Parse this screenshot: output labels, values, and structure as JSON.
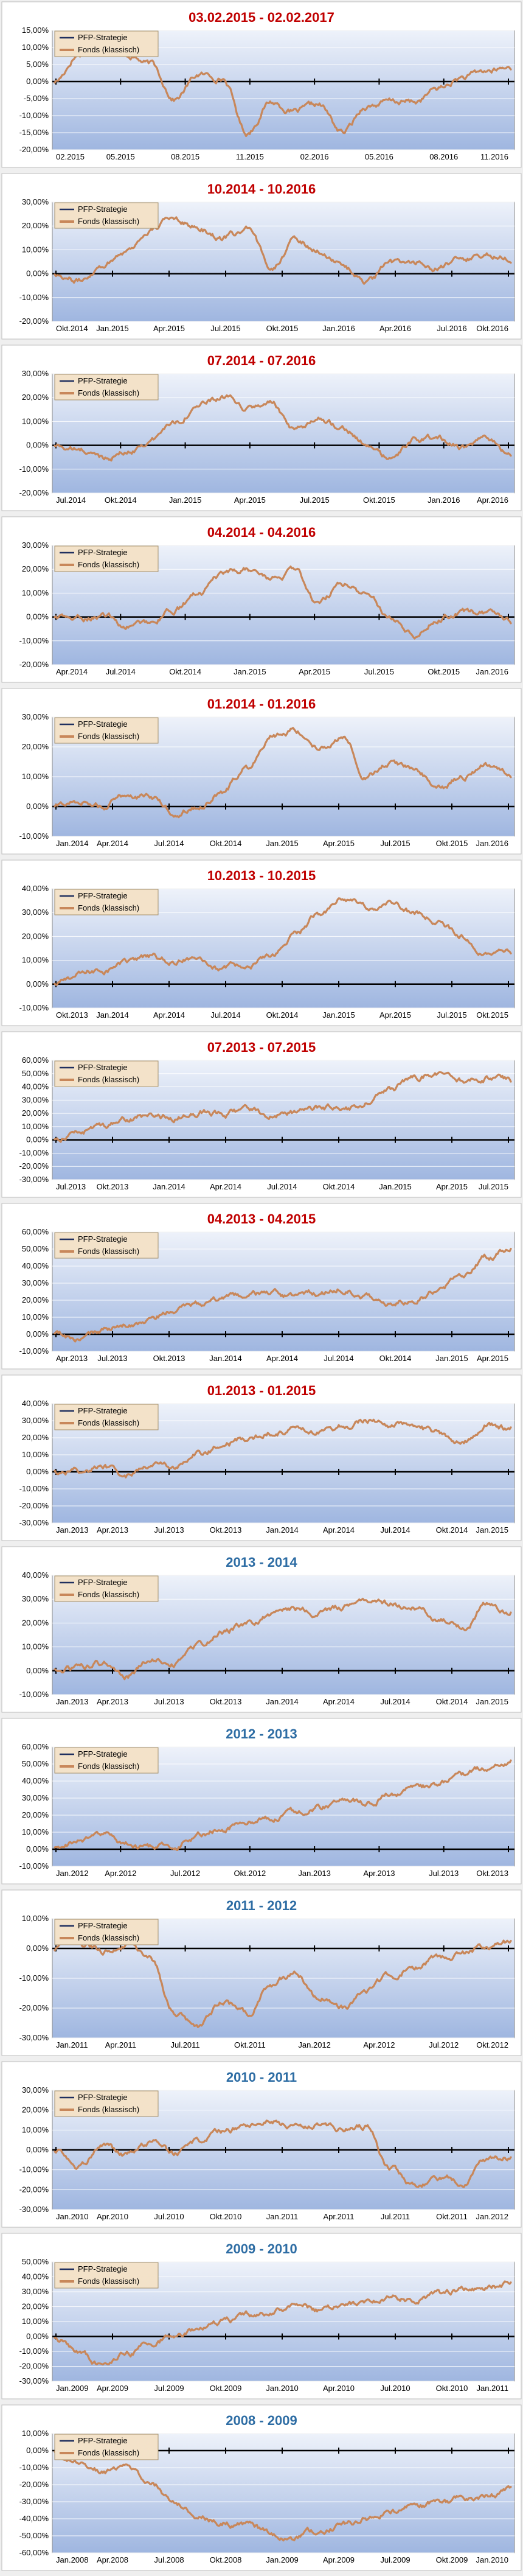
{
  "colors": {
    "fund": "#c8875a",
    "strategy": "#1f2f5f",
    "red_title": "#c00000",
    "blue_title": "#2e6da4",
    "plot_top": "#eef2fa",
    "plot_bottom": "#9fb6e0",
    "frame": "#8a8a8a",
    "grid": "#ffffff"
  },
  "chart_data": [
    {
      "type": "line",
      "title": "03.02.2015 - 02.02.2017",
      "title_color": "red",
      "x_ticks": [
        "02.2015",
        "05.2015",
        "08.2015",
        "11.2015",
        "02.2016",
        "05.2016",
        "08.2016",
        "11.2016"
      ],
      "y_ticks": [
        "15,00%",
        "10,00%",
        "5,00%",
        "0,00%",
        "-5,00%",
        "-10,00%",
        "-15,00%",
        "-20,00%"
      ],
      "ylim": [
        -20,
        15
      ],
      "legend_placement": "top-left",
      "series": [
        {
          "name": "PFP-Strategie",
          "values": []
        },
        {
          "name": "Fonds (klassisch)",
          "values": [
            0,
            8,
            12,
            8,
            5,
            -5,
            2,
            1,
            -15,
            -6,
            -9,
            -7,
            -15,
            -7,
            -6,
            -6,
            -2,
            1,
            3,
            4
          ]
        }
      ]
    },
    {
      "type": "line",
      "title": "10.2014 - 10.2016",
      "title_color": "red",
      "x_ticks": [
        "Okt.2014",
        "Jan.2015",
        "Apr.2015",
        "Jul.2015",
        "Okt.2015",
        "Jan.2016",
        "Apr.2016",
        "Jul.2016",
        "Okt.2016"
      ],
      "y_ticks": [
        "30,00%",
        "20,00%",
        "10,00%",
        "0,00%",
        "-10,00%",
        "-20,00%"
      ],
      "ylim": [
        -20,
        30
      ],
      "legend_placement": "top-left",
      "series": [
        {
          "name": "PFP-Strategie",
          "values": []
        },
        {
          "name": "Fonds (klassisch)",
          "values": [
            0,
            -3,
            4,
            10,
            18,
            24,
            19,
            15,
            18,
            3,
            14,
            10,
            3,
            -4,
            4,
            5,
            2,
            6,
            8,
            7
          ]
        }
      ]
    },
    {
      "type": "line",
      "title": "07.2014 - 07.2016",
      "title_color": "red",
      "x_ticks": [
        "Jul.2014",
        "Okt.2014",
        "Jan.2015",
        "Apr.2015",
        "Jul.2015",
        "Okt.2015",
        "Jan.2016",
        "Apr.2016"
      ],
      "y_ticks": [
        "30,00%",
        "20,00%",
        "10,00%",
        "0,00%",
        "-10,00%",
        "-20,00%"
      ],
      "ylim": [
        -20,
        30
      ],
      "legend_placement": "top-left",
      "series": [
        {
          "name": "PFP-Strategie",
          "values": []
        },
        {
          "name": "Fonds (klassisch)",
          "values": [
            0,
            -2,
            -5,
            -3,
            2,
            10,
            17,
            20,
            15,
            18,
            5,
            12,
            8,
            0,
            -6,
            2,
            3,
            -1,
            2,
            -3
          ]
        }
      ]
    },
    {
      "type": "line",
      "title": "04.2014 - 04.2016",
      "title_color": "red",
      "x_ticks": [
        "Apr.2014",
        "Jul.2014",
        "Okt.2014",
        "Jan.2015",
        "Apr.2015",
        "Jul.2015",
        "Okt.2015",
        "Jan.2016"
      ],
      "y_ticks": [
        "30,00%",
        "20,00%",
        "10,00%",
        "0,00%",
        "-10,00%",
        "-20,00%"
      ],
      "ylim": [
        -20,
        30
      ],
      "legend_placement": "top-left",
      "series": [
        {
          "name": "PFP-Strategie",
          "values": []
        },
        {
          "name": "Fonds (klassisch)",
          "values": [
            0,
            -1,
            1,
            -4,
            -2,
            3,
            10,
            17,
            20,
            16,
            19,
            6,
            14,
            9,
            0,
            -7,
            0,
            2,
            1,
            -2
          ]
        }
      ]
    },
    {
      "type": "line",
      "title": "01.2014 - 01.2016",
      "title_color": "red",
      "x_ticks": [
        "Jan.2014",
        "Apr.2014",
        "Jul.2014",
        "Okt.2014",
        "Jan.2015",
        "Apr.2015",
        "Jul.2015",
        "Okt.2015",
        "Jan.2016"
      ],
      "y_ticks": [
        "30,00%",
        "20,00%",
        "10,00%",
        "0,00%",
        "-10,00%"
      ],
      "ylim": [
        -10,
        30
      ],
      "legend_placement": "top-left",
      "series": [
        {
          "name": "PFP-Strategie",
          "values": []
        },
        {
          "name": "Fonds (klassisch)",
          "values": [
            0,
            2,
            0,
            4,
            3,
            -2,
            0,
            5,
            13,
            24,
            26,
            20,
            23,
            10,
            15,
            12,
            6,
            10,
            14,
            11
          ]
        }
      ]
    },
    {
      "type": "line",
      "title": "10.2013 - 10.2015",
      "title_color": "red",
      "x_ticks": [
        "Okt.2013",
        "Jan.2014",
        "Apr.2014",
        "Jul.2014",
        "Okt.2014",
        "Jan.2015",
        "Apr.2015",
        "Jul.2015",
        "Okt.2015"
      ],
      "y_ticks": [
        "40,00%",
        "30,00%",
        "20,00%",
        "10,00%",
        "0,00%",
        "-10,00%"
      ],
      "ylim": [
        -10,
        40
      ],
      "legend_placement": "top-left",
      "series": [
        {
          "name": "PFP-Strategie",
          "values": []
        },
        {
          "name": "Fonds (klassisch)",
          "values": [
            0,
            4,
            6,
            9,
            11,
            9,
            12,
            6,
            8,
            11,
            20,
            30,
            36,
            32,
            34,
            30,
            26,
            20,
            12,
            14
          ]
        }
      ]
    },
    {
      "type": "line",
      "title": "07.2013 - 07.2015",
      "title_color": "red",
      "x_ticks": [
        "Jul.2013",
        "Okt.2013",
        "Jan.2014",
        "Apr.2014",
        "Jul.2014",
        "Okt.2014",
        "Jan.2015",
        "Apr.2015",
        "Jul.2015"
      ],
      "y_ticks": [
        "60,00%",
        "50,00%",
        "40,00%",
        "30,00%",
        "20,00%",
        "10,00%",
        "0,00%",
        "-10,00%",
        "-20,00%",
        "-30,00%"
      ],
      "ylim": [
        -30,
        60
      ],
      "legend_placement": "top-left",
      "series": [
        {
          "name": "PFP-Strategie",
          "values": []
        },
        {
          "name": "Fonds (klassisch)",
          "values": [
            0,
            6,
            11,
            15,
            18,
            17,
            21,
            19,
            23,
            18,
            21,
            25,
            22,
            28,
            38,
            48,
            50,
            45,
            47,
            44
          ]
        }
      ]
    },
    {
      "type": "line",
      "title": "04.2013 - 04.2015",
      "title_color": "red",
      "x_ticks": [
        "Apr.2013",
        "Jul.2013",
        "Okt.2013",
        "Jan.2014",
        "Apr.2014",
        "Jul.2014",
        "Okt.2014",
        "Jan.2015",
        "Apr.2015"
      ],
      "y_ticks": [
        "60,00%",
        "50,00%",
        "40,00%",
        "30,00%",
        "20,00%",
        "10,00%",
        "0,00%",
        "-10,00%"
      ],
      "ylim": [
        -10,
        60
      ],
      "legend_placement": "top-left",
      "series": [
        {
          "name": "PFP-Strategie",
          "values": []
        },
        {
          "name": "Fonds (klassisch)",
          "values": [
            0,
            -3,
            2,
            5,
            9,
            14,
            17,
            20,
            22,
            24,
            21,
            24,
            27,
            23,
            17,
            21,
            26,
            35,
            45,
            50
          ]
        }
      ]
    },
    {
      "type": "line",
      "title": "01.2013 - 01.2015",
      "title_color": "red",
      "x_ticks": [
        "Jan.2013",
        "Apr.2013",
        "Jul.2013",
        "Okt.2013",
        "Jan.2014",
        "Apr.2014",
        "Jul.2014",
        "Okt.2014",
        "Jan.2015"
      ],
      "y_ticks": [
        "40,00%",
        "30,00%",
        "20,00%",
        "10,00%",
        "0,00%",
        "-10,00%",
        "-20,00%",
        "-30,00%"
      ],
      "ylim": [
        -30,
        40
      ],
      "legend_placement": "top-left",
      "series": [
        {
          "name": "PFP-Strategie",
          "values": []
        },
        {
          "name": "Fonds (klassisch)",
          "values": [
            0,
            1,
            3,
            -2,
            5,
            3,
            10,
            16,
            20,
            23,
            26,
            24,
            27,
            30,
            28,
            26,
            22,
            18,
            28,
            25
          ]
        }
      ]
    },
    {
      "type": "line",
      "title": "2013 - 2014",
      "title_color": "blue",
      "x_ticks": [
        "Jan.2013",
        "Apr.2013",
        "Jul.2013",
        "Okt.2013",
        "Jan.2014",
        "Apr.2014",
        "Jul.2014",
        "Okt.2014",
        "Jan.2015"
      ],
      "y_ticks": [
        "40,00%",
        "30,00%",
        "20,00%",
        "10,00%",
        "0,00%",
        "-10,00%"
      ],
      "ylim": [
        -10,
        40
      ],
      "legend_placement": "top-left",
      "series": [
        {
          "name": "PFP-Strategie",
          "values": []
        },
        {
          "name": "Fonds (klassisch)",
          "values": [
            0,
            1,
            3,
            -2,
            5,
            3,
            10,
            16,
            20,
            23,
            26,
            24,
            27,
            30,
            28,
            26,
            22,
            18,
            28,
            25
          ]
        }
      ]
    },
    {
      "type": "line",
      "title": "2012 - 2013",
      "title_color": "blue",
      "x_ticks": [
        "Jan.2012",
        "Apr.2012",
        "Jul.2012",
        "Okt.2012",
        "Jan.2013",
        "Apr.2013",
        "Jul.2013",
        "Okt.2013"
      ],
      "y_ticks": [
        "60,00%",
        "50,00%",
        "40,00%",
        "30,00%",
        "20,00%",
        "10,00%",
        "0,00%",
        "-10,00%"
      ],
      "ylim": [
        -10,
        60
      ],
      "legend_placement": "top-left",
      "series": [
        {
          "name": "PFP-Strategie",
          "values": []
        },
        {
          "name": "Fonds (klassisch)",
          "values": [
            0,
            5,
            8,
            3,
            0,
            2,
            8,
            12,
            16,
            18,
            22,
            25,
            28,
            27,
            32,
            36,
            38,
            44,
            48,
            52
          ]
        }
      ]
    },
    {
      "type": "line",
      "title": "2011 - 2012",
      "title_color": "blue",
      "x_ticks": [
        "Jan.2011",
        "Apr.2011",
        "Jul.2011",
        "Okt.2011",
        "Jan.2012",
        "Apr.2012",
        "Jul.2012",
        "Okt.2012"
      ],
      "y_ticks": [
        "10,00%",
        "0,00%",
        "-10,00%",
        "-20,00%",
        "-30,00%"
      ],
      "ylim": [
        -30,
        10
      ],
      "legend_placement": "top-left",
      "series": [
        {
          "name": "PFP-Strategie",
          "values": []
        },
        {
          "name": "Fonds (klassisch)",
          "values": [
            0,
            2,
            -1,
            1,
            -4,
            -22,
            -26,
            -18,
            -22,
            -12,
            -8,
            -16,
            -20,
            -14,
            -9,
            -6,
            -3,
            -2,
            1,
            2
          ]
        }
      ]
    },
    {
      "type": "line",
      "title": "2010 - 2011",
      "title_color": "blue",
      "x_ticks": [
        "Jan.2010",
        "Apr.2010",
        "Jul.2010",
        "Okt.2010",
        "Jan.2011",
        "Apr.2011",
        "Jul.2011",
        "Okt.2011",
        "Jan.2012"
      ],
      "y_ticks": [
        "30,00%",
        "20,00%",
        "10,00%",
        "0,00%",
        "-10,00%",
        "-20,00%",
        "-30,00%"
      ],
      "ylim": [
        -30,
        30
      ],
      "legend_placement": "top-left",
      "series": [
        {
          "name": "PFP-Strategie",
          "values": []
        },
        {
          "name": "Fonds (klassisch)",
          "values": [
            0,
            -8,
            2,
            -3,
            4,
            -2,
            5,
            9,
            13,
            15,
            12,
            14,
            10,
            12,
            -10,
            -18,
            -14,
            -16,
            -6,
            -4
          ]
        }
      ]
    },
    {
      "type": "line",
      "title": "2009 - 2010",
      "title_color": "blue",
      "x_ticks": [
        "Jan.2009",
        "Apr.2009",
        "Jul.2009",
        "Okt.2009",
        "Jan.2010",
        "Apr.2010",
        "Jul.2010",
        "Okt.2010",
        "Jan.2011"
      ],
      "y_ticks": [
        "50,00%",
        "40,00%",
        "30,00%",
        "20,00%",
        "10,00%",
        "0,00%",
        "-10,00%",
        "-20,00%",
        "-30,00%"
      ],
      "ylim": [
        -30,
        50
      ],
      "legend_placement": "top-left",
      "series": [
        {
          "name": "PFP-Strategie",
          "values": []
        },
        {
          "name": "Fonds (klassisch)",
          "values": [
            0,
            -10,
            -20,
            -12,
            -5,
            1,
            6,
            10,
            14,
            17,
            21,
            18,
            20,
            24,
            27,
            24,
            29,
            31,
            34,
            35
          ]
        }
      ]
    },
    {
      "type": "line",
      "title": "2008 - 2009",
      "title_color": "blue",
      "x_ticks": [
        "Jan.2008",
        "Apr.2008",
        "Jul.2008",
        "Okt.2008",
        "Jan.2009",
        "Apr.2009",
        "Jul.2009",
        "Okt.2009",
        "Jan.2010"
      ],
      "y_ticks": [
        "10,00%",
        "0,00%",
        "-10,00%",
        "-20,00%",
        "-30,00%",
        "-40,00%",
        "-50,00%",
        "-60,00%"
      ],
      "ylim": [
        -60,
        10
      ],
      "legend_placement": "top-left",
      "series": [
        {
          "name": "PFP-Strategie",
          "values": []
        },
        {
          "name": "Fonds (klassisch)",
          "values": [
            0,
            -8,
            -12,
            -10,
            -18,
            -30,
            -38,
            -42,
            -44,
            -48,
            -52,
            -47,
            -44,
            -40,
            -36,
            -33,
            -31,
            -28,
            -27,
            -24
          ]
        }
      ]
    }
  ]
}
